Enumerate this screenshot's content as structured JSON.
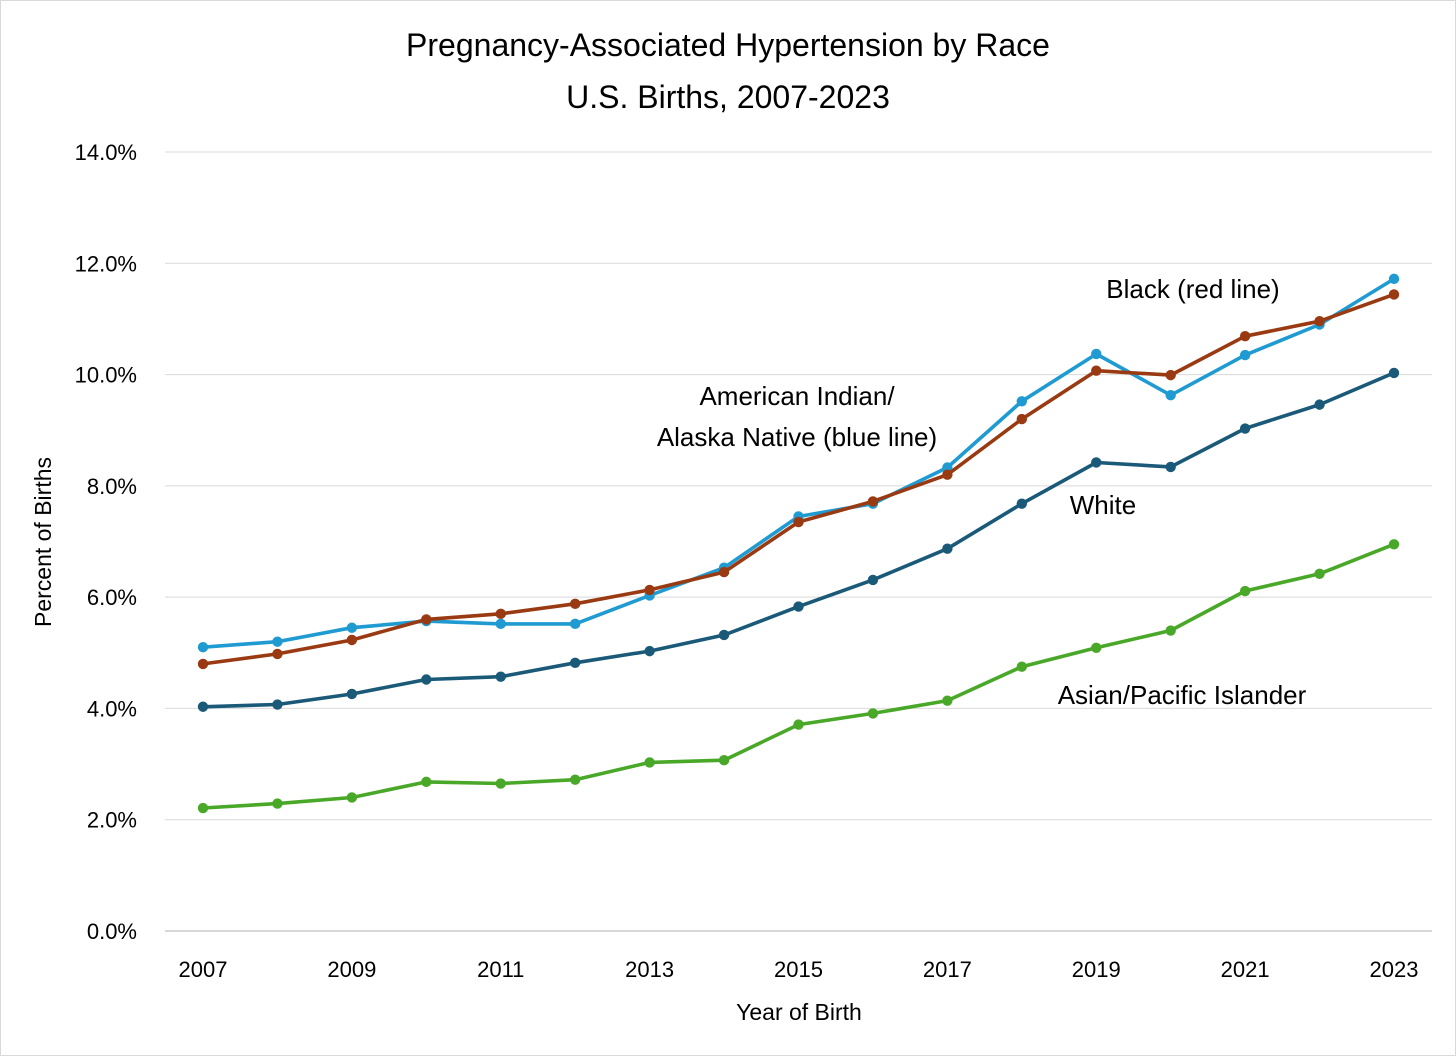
{
  "chart_data": {
    "type": "line",
    "title": "Pregnancy-Associated Hypertension by Race",
    "subtitle": "U.S. Births, 2007-2023",
    "xlabel": "Year of Birth",
    "ylabel": "Percent of Births",
    "x": [
      2007,
      2008,
      2009,
      2010,
      2011,
      2012,
      2013,
      2014,
      2015,
      2016,
      2017,
      2018,
      2019,
      2020,
      2021,
      2022,
      2023
    ],
    "x_tick_labels": [
      "2007",
      "2009",
      "2011",
      "2013",
      "2015",
      "2017",
      "2019",
      "2021",
      "2023"
    ],
    "x_tick_values": [
      2007,
      2009,
      2011,
      2013,
      2015,
      2017,
      2019,
      2021,
      2023
    ],
    "ylim": [
      0,
      14
    ],
    "y_tick_values": [
      0,
      2,
      4,
      6,
      8,
      10,
      12,
      14
    ],
    "y_tick_labels": [
      "0.0%",
      "2.0%",
      "4.0%",
      "6.0%",
      "8.0%",
      "10.0%",
      "12.0%",
      "14.0%"
    ],
    "grid": "horizontal",
    "legend": "none",
    "series": [
      {
        "key": "aian",
        "color": "#1f9bd1",
        "values": [
          5.1,
          5.2,
          5.45,
          5.57,
          5.52,
          5.52,
          6.03,
          6.53,
          7.45,
          7.68,
          8.33,
          9.52,
          10.37,
          9.63,
          10.35,
          10.9,
          11.72
        ]
      },
      {
        "key": "black",
        "color": "#9a3a12",
        "values": [
          4.8,
          4.98,
          5.23,
          5.6,
          5.7,
          5.88,
          6.13,
          6.45,
          7.35,
          7.72,
          8.2,
          9.2,
          10.07,
          9.99,
          10.69,
          10.96,
          11.44
        ]
      },
      {
        "key": "white",
        "color": "#1a5a78",
        "values": [
          4.03,
          4.07,
          4.26,
          4.52,
          4.57,
          4.82,
          5.03,
          5.32,
          5.83,
          6.31,
          6.87,
          7.68,
          8.42,
          8.34,
          9.03,
          9.46,
          10.03
        ]
      },
      {
        "key": "api",
        "color": "#4aa829",
        "values": [
          2.21,
          2.29,
          2.4,
          2.68,
          2.65,
          2.72,
          3.03,
          3.07,
          3.71,
          3.91,
          4.14,
          4.75,
          5.09,
          5.4,
          6.11,
          6.42,
          6.95
        ]
      }
    ],
    "annotations": {
      "black": "Black (red line)",
      "aian_line1": "American Indian/",
      "aian_line2": "Alaska Native (blue line)",
      "white": "White",
      "api": "Asian/Pacific Islander"
    }
  }
}
